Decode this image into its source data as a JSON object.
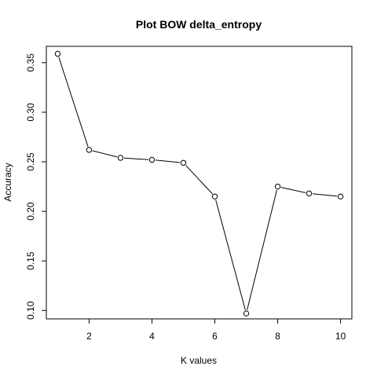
{
  "chart_data": {
    "type": "line",
    "title": "Plot BOW delta_entropy",
    "xlabel": "K values",
    "ylabel": "Accuracy",
    "x": [
      1,
      2,
      3,
      4,
      5,
      6,
      7,
      8,
      9,
      10
    ],
    "values": [
      0.359,
      0.262,
      0.254,
      0.252,
      0.249,
      0.215,
      0.097,
      0.225,
      0.218,
      0.215
    ],
    "xlim": [
      0.64,
      10.36
    ],
    "ylim": [
      0.0915,
      0.3665
    ],
    "xticks": [
      2,
      4,
      6,
      8,
      10
    ],
    "xtick_labels": [
      "2",
      "4",
      "6",
      "8",
      "10"
    ],
    "yticks": [
      0.1,
      0.15,
      0.2,
      0.25,
      0.3,
      0.35
    ],
    "ytick_labels": [
      "0.10",
      "0.15",
      "0.20",
      "0.25",
      "0.30",
      "0.35"
    ],
    "grid": false,
    "marker": "open-circle"
  }
}
